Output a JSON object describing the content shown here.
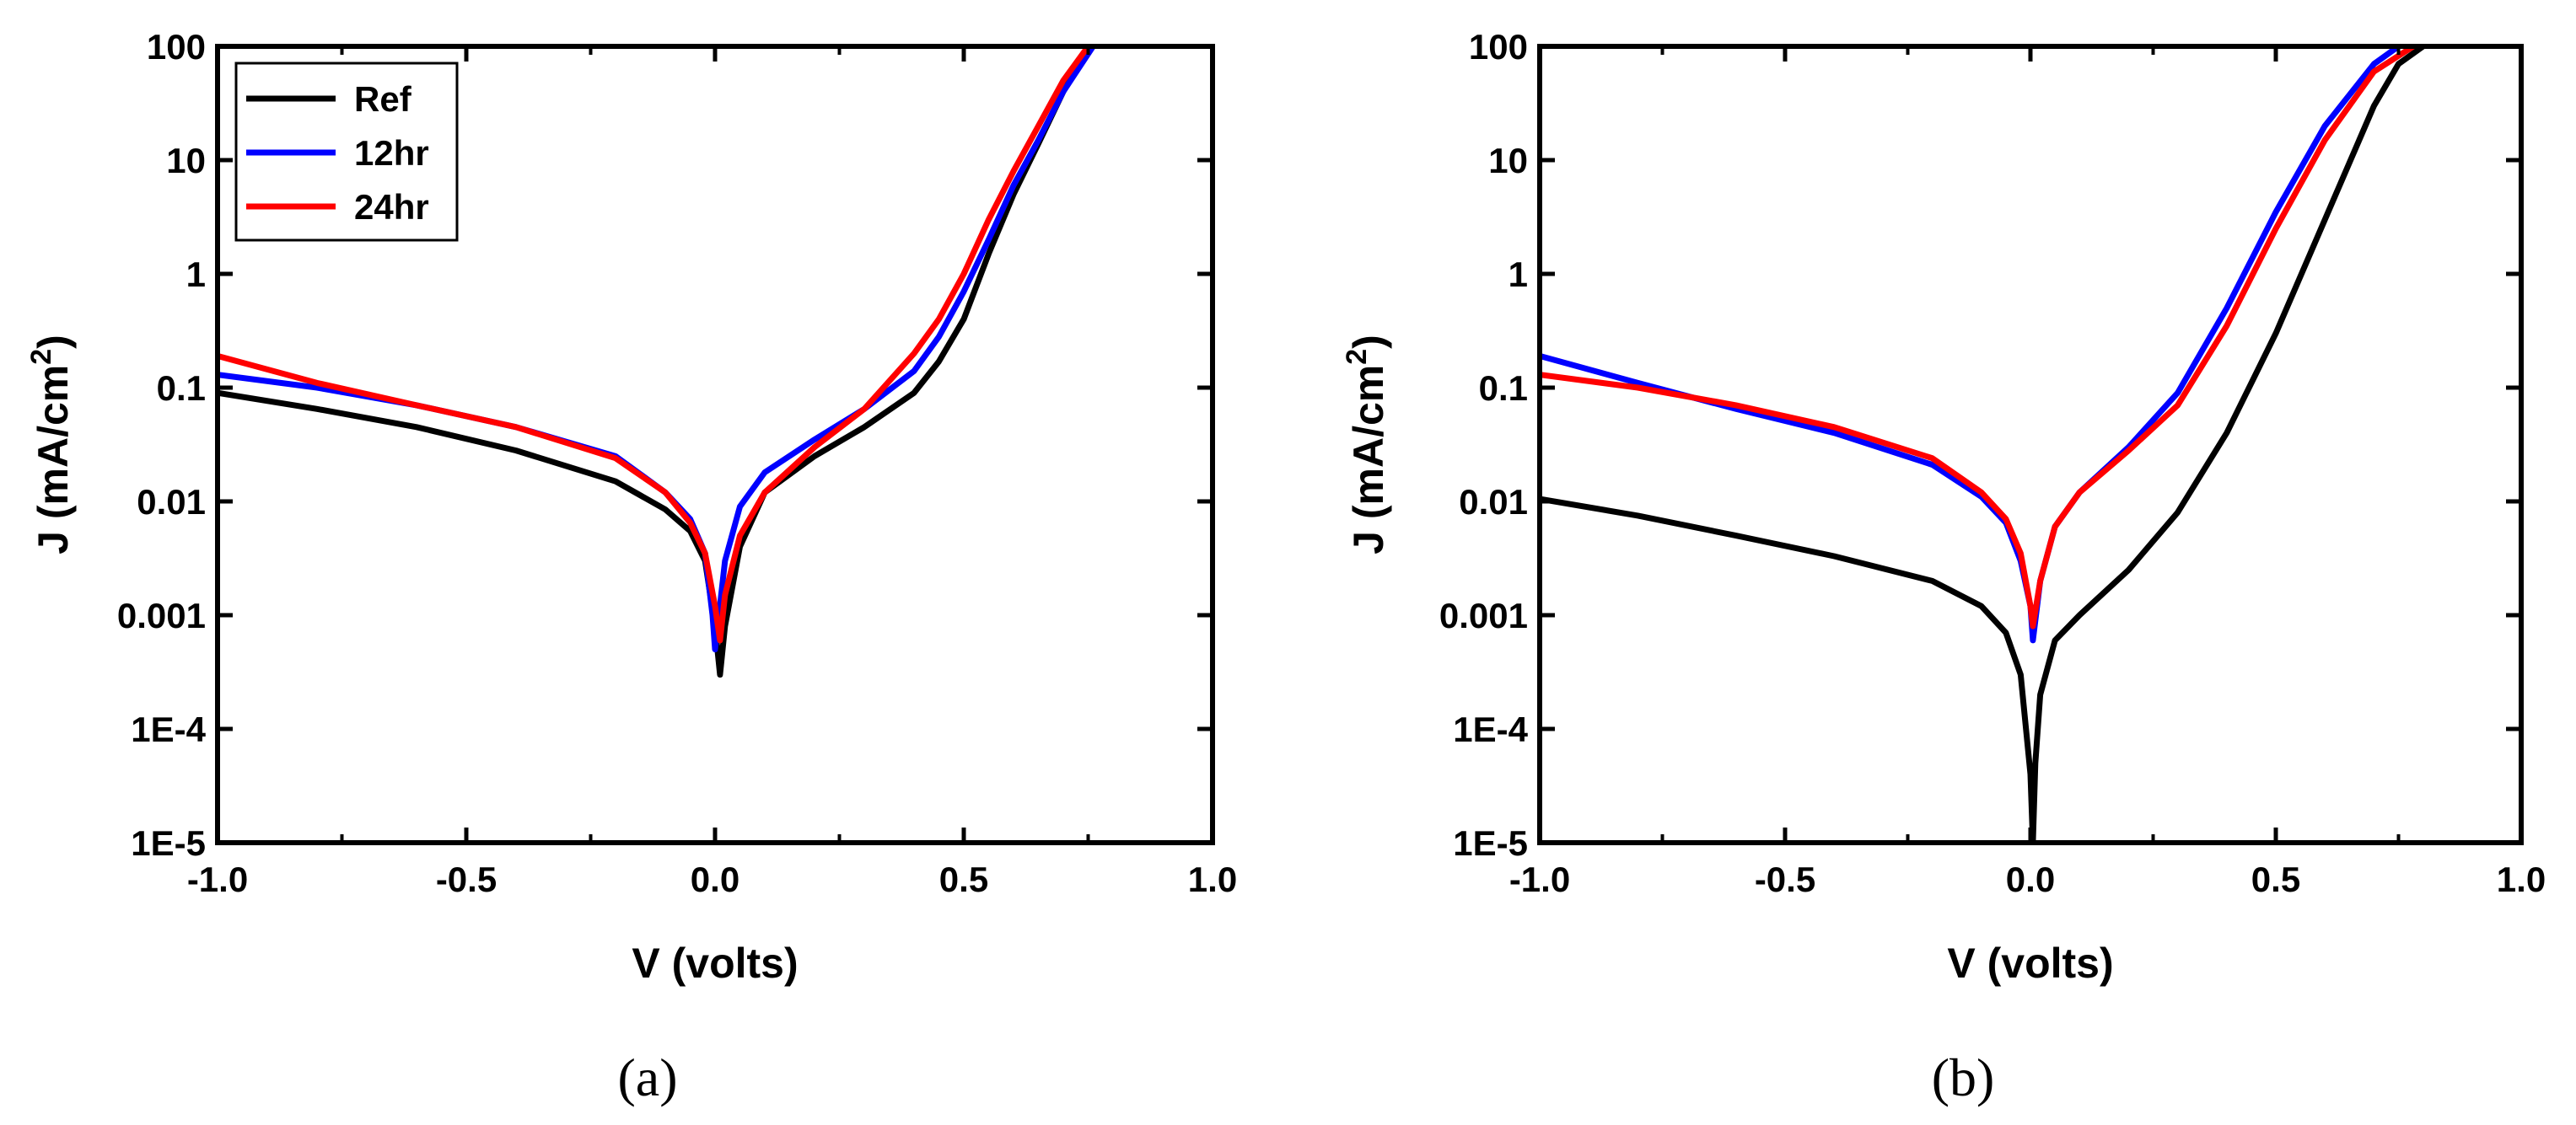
{
  "chart_data": [
    {
      "type": "line",
      "panel_label": "(a)",
      "xlabel": "V (volts)",
      "ylabel_main": "J (mA/cm",
      "ylabel_sup": "2",
      "ylabel_close": ")",
      "yscale": "log",
      "xlim": [
        -1.0,
        1.0
      ],
      "ylim": [
        1e-05,
        100
      ],
      "x_ticks": [
        -1.0,
        -0.5,
        0.0,
        0.5,
        1.0
      ],
      "x_tick_labels": [
        "-1.0",
        "-0.5",
        "0.0",
        "0.5",
        "1.0"
      ],
      "y_ticks": [
        1e-05,
        0.0001,
        0.001,
        0.01,
        0.1,
        1,
        10,
        100
      ],
      "y_tick_labels": [
        "1E-5",
        "1E-4",
        "0.001",
        "0.01",
        "0.1",
        "1",
        "10",
        "100"
      ],
      "legend": {
        "position": "top-left",
        "entries": [
          "Ref",
          "12hr",
          "24hr"
        ]
      },
      "series": [
        {
          "name": "Ref",
          "color": "#000000",
          "x": [
            -1.0,
            -0.8,
            -0.6,
            -0.4,
            -0.2,
            -0.1,
            -0.05,
            -0.02,
            0.0,
            0.01,
            0.02,
            0.05,
            0.1,
            0.2,
            0.3,
            0.4,
            0.45,
            0.5,
            0.55,
            0.6,
            0.65,
            0.7,
            0.75
          ],
          "y": [
            0.09,
            0.065,
            0.045,
            0.028,
            0.015,
            0.0085,
            0.0055,
            0.003,
            0.0008,
            0.0003,
            0.0008,
            0.004,
            0.012,
            0.025,
            0.045,
            0.09,
            0.17,
            0.4,
            1.5,
            5,
            14,
            40,
            100
          ]
        },
        {
          "name": "12hr",
          "color": "#0000ff",
          "x": [
            -1.0,
            -0.8,
            -0.6,
            -0.4,
            -0.2,
            -0.1,
            -0.05,
            -0.02,
            -0.005,
            0.0,
            0.02,
            0.05,
            0.1,
            0.2,
            0.3,
            0.4,
            0.45,
            0.5,
            0.55,
            0.6,
            0.65,
            0.7,
            0.76
          ],
          "y": [
            0.13,
            0.1,
            0.07,
            0.045,
            0.025,
            0.012,
            0.007,
            0.0035,
            0.001,
            0.0005,
            0.003,
            0.009,
            0.018,
            0.035,
            0.065,
            0.14,
            0.28,
            0.7,
            2,
            6,
            15,
            40,
            100
          ]
        },
        {
          "name": "24hr",
          "color": "#ff0000",
          "x": [
            -1.0,
            -0.8,
            -0.6,
            -0.4,
            -0.2,
            -0.1,
            -0.05,
            -0.02,
            0.0,
            0.01,
            0.02,
            0.05,
            0.1,
            0.2,
            0.3,
            0.4,
            0.45,
            0.5,
            0.55,
            0.6,
            0.65,
            0.7,
            0.75
          ],
          "y": [
            0.19,
            0.11,
            0.07,
            0.045,
            0.024,
            0.012,
            0.0065,
            0.0035,
            0.0012,
            0.0006,
            0.0015,
            0.005,
            0.012,
            0.03,
            0.065,
            0.2,
            0.4,
            1.0,
            3,
            8,
            20,
            50,
            100
          ]
        }
      ]
    },
    {
      "type": "line",
      "panel_label": "(b)",
      "xlabel": "V (volts)",
      "ylabel_main": "J (mA/cm",
      "ylabel_sup": "2",
      "ylabel_close": ")",
      "yscale": "log",
      "xlim": [
        -1.0,
        1.0
      ],
      "ylim": [
        1e-05,
        100
      ],
      "x_ticks": [
        -1.0,
        -0.5,
        0.0,
        0.5,
        1.0
      ],
      "x_tick_labels": [
        "-1.0",
        "-0.5",
        "0.0",
        "0.5",
        "1.0"
      ],
      "y_ticks": [
        1e-05,
        0.0001,
        0.001,
        0.01,
        0.1,
        1,
        10,
        100
      ],
      "y_tick_labels": [
        "1E-5",
        "1E-4",
        "0.001",
        "0.01",
        "0.1",
        "1",
        "10",
        "100"
      ],
      "series": [
        {
          "name": "Ref",
          "color": "#000000",
          "x": [
            -1.0,
            -0.8,
            -0.6,
            -0.4,
            -0.2,
            -0.1,
            -0.05,
            -0.02,
            0.0,
            0.005,
            0.01,
            0.02,
            0.05,
            0.1,
            0.2,
            0.3,
            0.4,
            0.5,
            0.6,
            0.7,
            0.75,
            0.8
          ],
          "y": [
            0.0105,
            0.0075,
            0.005,
            0.0033,
            0.002,
            0.0012,
            0.0007,
            0.0003,
            4e-05,
            1e-05,
            5e-05,
            0.0002,
            0.0006,
            0.001,
            0.0025,
            0.008,
            0.04,
            0.3,
            3,
            30,
            70,
            100
          ]
        },
        {
          "name": "12hr",
          "color": "#0000ff",
          "x": [
            -1.0,
            -0.8,
            -0.6,
            -0.4,
            -0.2,
            -0.1,
            -0.05,
            -0.02,
            0.0,
            0.005,
            0.02,
            0.05,
            0.1,
            0.2,
            0.3,
            0.4,
            0.5,
            0.6,
            0.7,
            0.75
          ],
          "y": [
            0.19,
            0.11,
            0.065,
            0.04,
            0.021,
            0.011,
            0.0065,
            0.003,
            0.0012,
            0.0006,
            0.002,
            0.006,
            0.012,
            0.03,
            0.09,
            0.5,
            3.5,
            20,
            70,
            100
          ]
        },
        {
          "name": "24hr",
          "color": "#ff0000",
          "x": [
            -1.0,
            -0.8,
            -0.6,
            -0.4,
            -0.2,
            -0.1,
            -0.05,
            -0.02,
            0.0,
            0.005,
            0.02,
            0.05,
            0.1,
            0.2,
            0.3,
            0.4,
            0.5,
            0.6,
            0.7,
            0.78
          ],
          "y": [
            0.13,
            0.1,
            0.07,
            0.045,
            0.024,
            0.012,
            0.007,
            0.0035,
            0.0012,
            0.0008,
            0.002,
            0.006,
            0.012,
            0.028,
            0.07,
            0.35,
            2.5,
            15,
            60,
            100
          ]
        }
      ]
    }
  ]
}
